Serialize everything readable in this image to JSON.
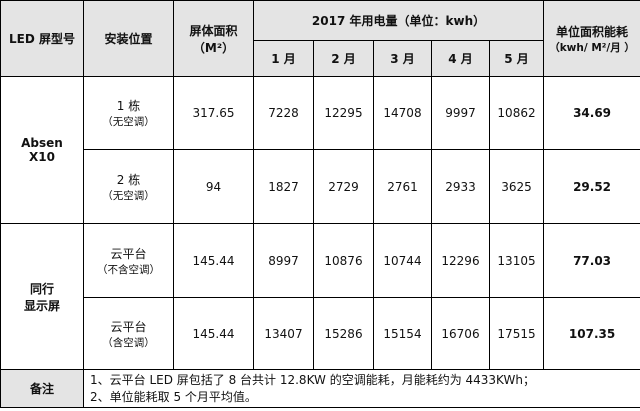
{
  "header": {
    "model": "LED 屏型号",
    "location": "安装位置",
    "area": [
      "屏体面积",
      "（M²）"
    ],
    "usage": "2017 年用电量（单位：kwh）",
    "months": [
      "1 月",
      "2 月",
      "3 月",
      "4 月",
      "5 月"
    ],
    "intensity": [
      "单位面积能耗",
      "（kwh/ M²/月 ）"
    ]
  },
  "groups": [
    {
      "model": [
        "Absen",
        "X10"
      ],
      "rows": [
        {
          "location": [
            "1 栋",
            "（无空调）"
          ],
          "area": 317.65,
          "usage": [
            7228,
            12295,
            14708,
            9997,
            10862
          ],
          "intensity": 34.69
        },
        {
          "location": [
            "2 栋",
            "（无空调）"
          ],
          "area": 94,
          "usage": [
            1827,
            2729,
            2761,
            2933,
            3625
          ],
          "intensity": 29.52
        }
      ]
    },
    {
      "model": [
        "同行",
        "显示屏"
      ],
      "rows": [
        {
          "location": [
            "云平台",
            "（不含空调）"
          ],
          "area": 145.44,
          "usage": [
            8997,
            10876,
            10744,
            12296,
            13105
          ],
          "intensity": 77.03
        },
        {
          "location": [
            "云平台",
            "（含空调）"
          ],
          "area": 145.44,
          "usage": [
            13407,
            15286,
            15154,
            16706,
            17515
          ],
          "intensity": 107.35
        }
      ]
    }
  ],
  "notes": {
    "label": "备注",
    "lines": [
      "1、云平台 LED 屏包括了 8 台共计 12.8KW 的空调能耗，月能耗约为 4433KWh；",
      "2、单位能耗取 5 个月平均值。"
    ]
  }
}
